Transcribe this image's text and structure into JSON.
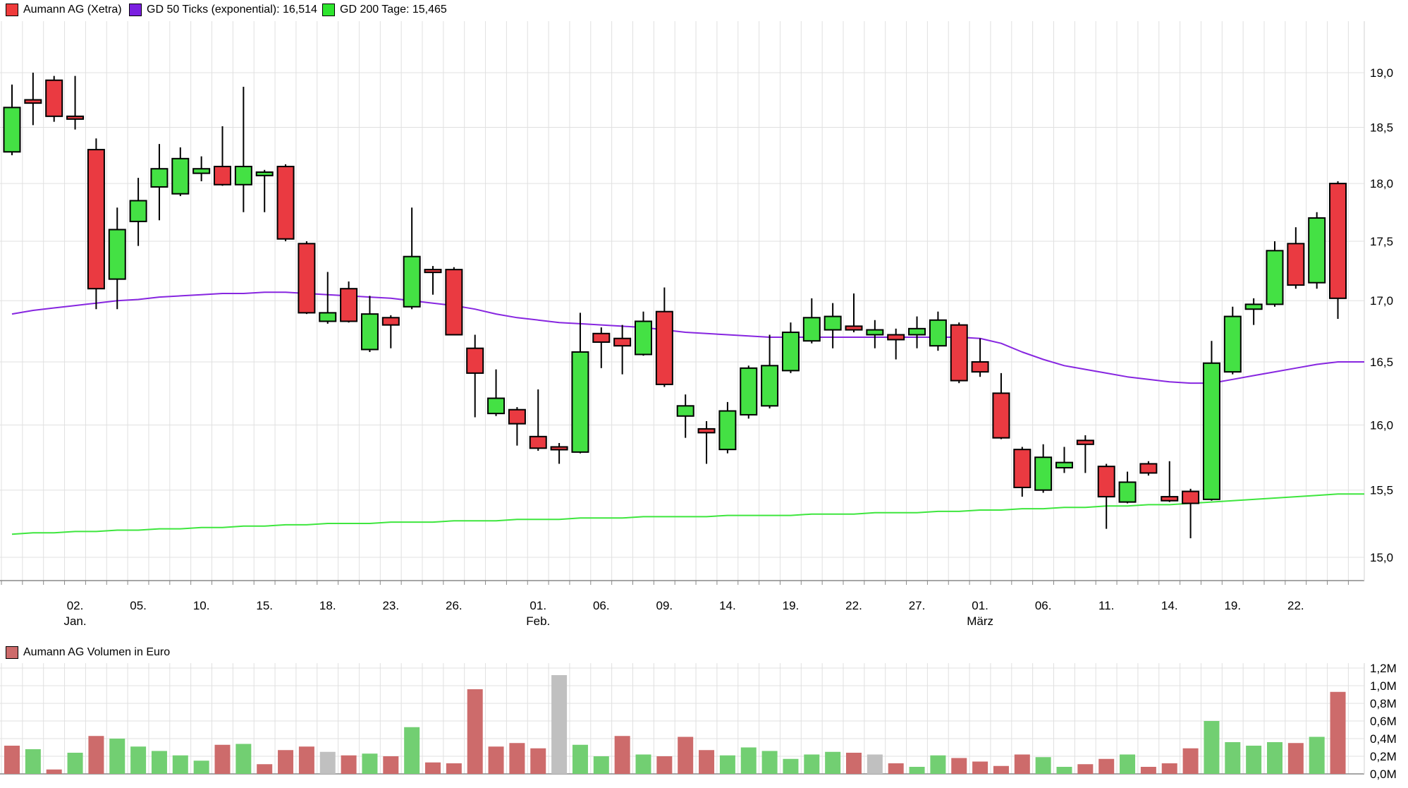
{
  "legend": {
    "items": [
      {
        "label": "Aumann AG (Xetra)",
        "color": "#ef3b3b",
        "x": 8
      },
      {
        "label": "GD 50 Ticks (exponential): 16,514",
        "color": "#7a1fe0",
        "x": 183
      },
      {
        "label": "GD 200 Tage: 15,465",
        "color": "#2ee52e",
        "x": 457
      }
    ]
  },
  "volume_legend": {
    "label": "Aumann AG Volumen in Euro",
    "color": "#cd6b6b"
  },
  "colors": {
    "candle_up": "#44e144",
    "candle_down": "#ea3a41",
    "wick": "#000000",
    "ma50": "#8726e0",
    "ma200": "#3ee63e",
    "vol_up": "#72cf72",
    "vol_down": "#cd6b6b",
    "vol_neutral": "#c0c0c0",
    "grid": "#e0e0e0",
    "axis": "#888888",
    "text": "#000000"
  },
  "chart_data": {
    "type": "candlestick+volume",
    "title": "Aumann AG (Xetra)",
    "price_axis": {
      "min": 15.0,
      "max": 19.0,
      "scale": "log",
      "tick_labels": [
        "19,0",
        "18,5",
        "18,0",
        "17,5",
        "17,0",
        "16,5",
        "16,0",
        "15,5",
        "15,0"
      ],
      "tick_values": [
        19.0,
        18.5,
        18.0,
        17.5,
        17.0,
        16.5,
        16.0,
        15.5,
        15.0
      ]
    },
    "volume_axis": {
      "min": 0.0,
      "max": 1.2,
      "tick_labels": [
        "1,2M",
        "1,0M",
        "0,8M",
        "0,6M",
        "0,4M",
        "0,2M",
        "0,0M"
      ],
      "tick_values": [
        1.2,
        1.0,
        0.8,
        0.6,
        0.4,
        0.2,
        0.0
      ]
    },
    "x_ticks": [
      {
        "i": 3,
        "line1": "02.",
        "line2": "Jan."
      },
      {
        "i": 6,
        "line1": "05."
      },
      {
        "i": 9,
        "line1": "10."
      },
      {
        "i": 12,
        "line1": "15."
      },
      {
        "i": 15,
        "line1": "18."
      },
      {
        "i": 18,
        "line1": "23."
      },
      {
        "i": 21,
        "line1": "26."
      },
      {
        "i": 25,
        "line1": "01.",
        "line2": "Feb."
      },
      {
        "i": 28,
        "line1": "06."
      },
      {
        "i": 31,
        "line1": "09."
      },
      {
        "i": 34,
        "line1": "14."
      },
      {
        "i": 37,
        "line1": "19."
      },
      {
        "i": 40,
        "line1": "22."
      },
      {
        "i": 43,
        "line1": "27."
      },
      {
        "i": 46,
        "line1": "01.",
        "line2": "März"
      },
      {
        "i": 49,
        "line1": "06."
      },
      {
        "i": 52,
        "line1": "11."
      },
      {
        "i": 55,
        "line1": "14."
      },
      {
        "i": 58,
        "line1": "19."
      },
      {
        "i": 61,
        "line1": "22."
      }
    ],
    "dates": [
      "27.12.",
      "28.12.",
      "29.12.",
      "02.01.",
      "03.01.",
      "04.01.",
      "05.01.",
      "08.01.",
      "09.01.",
      "10.01.",
      "11.01.",
      "12.01.",
      "15.01.",
      "16.01.",
      "17.01.",
      "18.01.",
      "19.01.",
      "22.01.",
      "23.01.",
      "24.01.",
      "25.01.",
      "26.01.",
      "29.01.",
      "30.01.",
      "31.01.",
      "01.02.",
      "02.02.",
      "05.02.",
      "06.02.",
      "07.02.",
      "08.02.",
      "09.02.",
      "12.02.",
      "13.02.",
      "14.02.",
      "15.02.",
      "16.02.",
      "19.02.",
      "20.02.",
      "21.02.",
      "22.02.",
      "23.02.",
      "26.02.",
      "27.02.",
      "28.02.",
      "29.02.",
      "01.03.",
      "04.03.",
      "05.03.",
      "06.03.",
      "07.03.",
      "08.03.",
      "11.03.",
      "12.03.",
      "13.03.",
      "14.03.",
      "15.03.",
      "18.03.",
      "19.03.",
      "20.03.",
      "21.03.",
      "22.03.",
      "25.03.",
      "26.03."
    ],
    "ohlc": [
      [
        18.28,
        18.89,
        18.25,
        18.68
      ],
      [
        18.75,
        19.0,
        18.52,
        18.72
      ],
      [
        18.93,
        18.97,
        18.55,
        18.6
      ],
      [
        18.6,
        18.97,
        18.48,
        18.58
      ],
      [
        18.3,
        18.4,
        16.93,
        17.1
      ],
      [
        17.18,
        17.79,
        16.93,
        17.6
      ],
      [
        17.67,
        18.05,
        17.46,
        17.85
      ],
      [
        17.97,
        18.35,
        17.68,
        18.13
      ],
      [
        17.91,
        18.32,
        17.89,
        18.22
      ],
      [
        18.09,
        18.24,
        18.02,
        18.13
      ],
      [
        18.15,
        18.51,
        17.98,
        17.99
      ],
      [
        17.99,
        18.87,
        17.75,
        18.15
      ],
      [
        18.07,
        18.12,
        17.75,
        18.1
      ],
      [
        18.15,
        18.17,
        17.5,
        17.52
      ],
      [
        17.48,
        17.5,
        16.89,
        16.9
      ],
      [
        16.83,
        17.24,
        16.81,
        16.9
      ],
      [
        17.1,
        17.16,
        16.82,
        16.83
      ],
      [
        16.6,
        17.04,
        16.58,
        16.89
      ],
      [
        16.86,
        16.88,
        16.61,
        16.8
      ],
      [
        16.95,
        17.79,
        16.93,
        17.37
      ],
      [
        17.26,
        17.29,
        17.05,
        17.25
      ],
      [
        17.26,
        17.28,
        16.72,
        16.72
      ],
      [
        16.61,
        16.72,
        16.06,
        16.41
      ],
      [
        16.09,
        16.44,
        16.07,
        16.21
      ],
      [
        16.12,
        16.14,
        15.84,
        16.01
      ],
      [
        15.91,
        16.28,
        15.8,
        15.82
      ],
      [
        15.83,
        15.86,
        15.7,
        15.82
      ],
      [
        15.79,
        16.9,
        15.78,
        16.58
      ],
      [
        16.73,
        16.78,
        16.45,
        16.66
      ],
      [
        16.69,
        16.8,
        16.4,
        16.63
      ],
      [
        16.56,
        16.91,
        16.55,
        16.83
      ],
      [
        16.91,
        17.11,
        16.3,
        16.32
      ],
      [
        16.07,
        16.24,
        15.9,
        16.15
      ],
      [
        15.97,
        16.03,
        15.7,
        15.94
      ],
      [
        15.81,
        16.18,
        15.78,
        16.11
      ],
      [
        16.08,
        16.47,
        16.05,
        16.45
      ],
      [
        16.15,
        16.72,
        16.13,
        16.47
      ],
      [
        16.43,
        16.82,
        16.41,
        16.74
      ],
      [
        16.67,
        17.02,
        16.65,
        16.86
      ],
      [
        16.76,
        16.98,
        16.61,
        16.87
      ],
      [
        16.79,
        17.06,
        16.74,
        16.76
      ],
      [
        16.72,
        16.84,
        16.61,
        16.76
      ],
      [
        16.72,
        16.77,
        16.52,
        16.68
      ],
      [
        16.72,
        16.87,
        16.61,
        16.77
      ],
      [
        16.63,
        16.91,
        16.59,
        16.84
      ],
      [
        16.8,
        16.82,
        16.33,
        16.35
      ],
      [
        16.5,
        16.69,
        16.38,
        16.42
      ],
      [
        16.25,
        16.41,
        15.89,
        15.9
      ],
      [
        15.81,
        15.83,
        15.45,
        15.52
      ],
      [
        15.5,
        15.85,
        15.48,
        15.75
      ],
      [
        15.67,
        15.83,
        15.63,
        15.71
      ],
      [
        15.88,
        15.92,
        15.63,
        15.85
      ],
      [
        15.68,
        15.7,
        15.21,
        15.45
      ],
      [
        15.41,
        15.64,
        15.4,
        15.56
      ],
      [
        15.7,
        15.72,
        15.61,
        15.63
      ],
      [
        15.45,
        15.72,
        15.41,
        15.42
      ],
      [
        15.49,
        15.51,
        15.14,
        15.4
      ],
      [
        15.43,
        16.67,
        15.42,
        16.49
      ],
      [
        16.42,
        16.95,
        16.4,
        16.87
      ],
      [
        16.93,
        17.02,
        16.8,
        16.97
      ],
      [
        16.97,
        17.5,
        16.95,
        17.42
      ],
      [
        17.48,
        17.62,
        17.1,
        17.13
      ],
      [
        17.15,
        17.75,
        17.1,
        17.7
      ],
      [
        18.0,
        18.02,
        16.85,
        17.02
      ]
    ],
    "volume_m_eur": [
      [
        0.32,
        "d"
      ],
      [
        0.28,
        "u"
      ],
      [
        0.05,
        "d"
      ],
      [
        0.24,
        "u"
      ],
      [
        0.43,
        "d"
      ],
      [
        0.4,
        "u"
      ],
      [
        0.31,
        "u"
      ],
      [
        0.26,
        "u"
      ],
      [
        0.21,
        "u"
      ],
      [
        0.15,
        "u"
      ],
      [
        0.33,
        "d"
      ],
      [
        0.34,
        "u"
      ],
      [
        0.11,
        "d"
      ],
      [
        0.27,
        "d"
      ],
      [
        0.31,
        "d"
      ],
      [
        0.25,
        "n"
      ],
      [
        0.21,
        "d"
      ],
      [
        0.23,
        "u"
      ],
      [
        0.2,
        "d"
      ],
      [
        0.53,
        "u"
      ],
      [
        0.13,
        "d"
      ],
      [
        0.12,
        "d"
      ],
      [
        0.96,
        "d"
      ],
      [
        0.31,
        "d"
      ],
      [
        0.35,
        "d"
      ],
      [
        0.29,
        "d"
      ],
      [
        1.12,
        "n"
      ],
      [
        0.33,
        "u"
      ],
      [
        0.2,
        "u"
      ],
      [
        0.43,
        "d"
      ],
      [
        0.22,
        "u"
      ],
      [
        0.2,
        "d"
      ],
      [
        0.42,
        "d"
      ],
      [
        0.27,
        "d"
      ],
      [
        0.21,
        "u"
      ],
      [
        0.3,
        "u"
      ],
      [
        0.26,
        "u"
      ],
      [
        0.17,
        "u"
      ],
      [
        0.22,
        "u"
      ],
      [
        0.25,
        "u"
      ],
      [
        0.24,
        "d"
      ],
      [
        0.22,
        "n"
      ],
      [
        0.12,
        "d"
      ],
      [
        0.08,
        "u"
      ],
      [
        0.21,
        "u"
      ],
      [
        0.18,
        "d"
      ],
      [
        0.14,
        "d"
      ],
      [
        0.09,
        "d"
      ],
      [
        0.22,
        "d"
      ],
      [
        0.19,
        "u"
      ],
      [
        0.08,
        "u"
      ],
      [
        0.11,
        "d"
      ],
      [
        0.17,
        "d"
      ],
      [
        0.22,
        "u"
      ],
      [
        0.08,
        "d"
      ],
      [
        0.12,
        "d"
      ],
      [
        0.29,
        "d"
      ],
      [
        0.6,
        "u"
      ],
      [
        0.36,
        "u"
      ],
      [
        0.32,
        "u"
      ],
      [
        0.36,
        "u"
      ],
      [
        0.35,
        "d"
      ],
      [
        0.42,
        "u"
      ],
      [
        0.93,
        "d"
      ]
    ],
    "series": [
      {
        "name": "GD 50 Ticks (exponential)",
        "current_value": "16,514",
        "values": [
          16.89,
          16.92,
          16.94,
          16.96,
          16.98,
          17.0,
          17.01,
          17.03,
          17.04,
          17.05,
          17.06,
          17.06,
          17.07,
          17.07,
          17.06,
          17.05,
          17.04,
          17.03,
          17.02,
          17.0,
          16.98,
          16.96,
          16.93,
          16.89,
          16.86,
          16.84,
          16.82,
          16.81,
          16.8,
          16.79,
          16.78,
          16.76,
          16.74,
          16.73,
          16.72,
          16.71,
          16.7,
          16.7,
          16.7,
          16.7,
          16.7,
          16.7,
          16.7,
          16.7,
          16.7,
          16.7,
          16.69,
          16.65,
          16.58,
          16.52,
          16.47,
          16.44,
          16.41,
          16.38,
          16.36,
          16.34,
          16.33,
          16.33,
          16.36,
          16.39,
          16.42,
          16.45,
          16.48,
          16.5
        ]
      },
      {
        "name": "GD 200 Tage",
        "current_value": "15,465",
        "values": [
          15.17,
          15.18,
          15.18,
          15.19,
          15.19,
          15.2,
          15.2,
          15.21,
          15.21,
          15.22,
          15.22,
          15.23,
          15.23,
          15.24,
          15.24,
          15.25,
          15.25,
          15.25,
          15.26,
          15.26,
          15.26,
          15.27,
          15.27,
          15.27,
          15.28,
          15.28,
          15.28,
          15.29,
          15.29,
          15.29,
          15.3,
          15.3,
          15.3,
          15.3,
          15.31,
          15.31,
          15.31,
          15.31,
          15.32,
          15.32,
          15.32,
          15.33,
          15.33,
          15.33,
          15.34,
          15.34,
          15.35,
          15.35,
          15.36,
          15.36,
          15.37,
          15.37,
          15.38,
          15.38,
          15.39,
          15.39,
          15.4,
          15.41,
          15.42,
          15.43,
          15.44,
          15.45,
          15.46,
          15.47
        ]
      }
    ],
    "grid": true,
    "legend_position": "top"
  }
}
